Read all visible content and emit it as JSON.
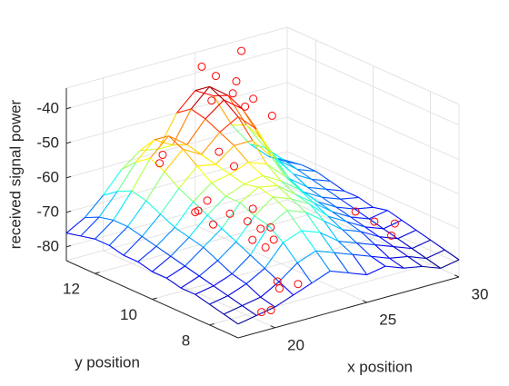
{
  "chart_data": {
    "type": "mesh3d",
    "xlabel": "x position",
    "ylabel": "y position",
    "zlabel": "received signal power",
    "xlim": [
      18,
      30
    ],
    "ylim": [
      7,
      13
    ],
    "zlim": [
      -84,
      -34
    ],
    "xticks": [
      20,
      25,
      30
    ],
    "yticks": [
      8,
      10,
      12
    ],
    "zticks": [
      -80,
      -70,
      -60,
      -50,
      -40
    ],
    "grid": true,
    "colormap": "jet",
    "x": [
      18,
      19,
      20,
      21,
      22,
      23,
      24,
      25,
      26,
      27,
      28,
      29,
      30
    ],
    "y": [
      7,
      7.5,
      8,
      8.5,
      9,
      9.5,
      10,
      10.5,
      11,
      11.5,
      12,
      12.5,
      13
    ],
    "z": [
      [
        -80,
        -79,
        -78,
        -76,
        -74,
        -72,
        -74,
        -76,
        -75,
        -77,
        -78,
        -80,
        -79
      ],
      [
        -79,
        -78,
        -77,
        -74,
        -70,
        -68,
        -70,
        -72,
        -74,
        -76,
        -77,
        -79,
        -78
      ],
      [
        -78,
        -77,
        -75,
        -72,
        -66,
        -64,
        -66,
        -70,
        -72,
        -74,
        -76,
        -78,
        -77
      ],
      [
        -77,
        -76,
        -74,
        -70,
        -63,
        -60,
        -62,
        -66,
        -70,
        -72,
        -75,
        -77,
        -76
      ],
      [
        -77,
        -75,
        -72,
        -68,
        -62,
        -58,
        -60,
        -63,
        -68,
        -71,
        -74,
        -76,
        -75
      ],
      [
        -76,
        -74,
        -70,
        -66,
        -60,
        -57,
        -58,
        -62,
        -66,
        -70,
        -73,
        -75,
        -74
      ],
      [
        -76,
        -73,
        -69,
        -64,
        -60,
        -58,
        -57,
        -60,
        -64,
        -69,
        -72,
        -74,
        -75
      ],
      [
        -75,
        -72,
        -68,
        -62,
        -58,
        -57,
        -55,
        -57,
        -62,
        -68,
        -71,
        -73,
        -74
      ],
      [
        -75,
        -71,
        -66,
        -60,
        -55,
        -56,
        -52,
        -52,
        -58,
        -66,
        -70,
        -72,
        -74
      ],
      [
        -74,
        -70,
        -64,
        -57,
        -52,
        -55,
        -50,
        -47,
        -52,
        -62,
        -68,
        -71,
        -73
      ],
      [
        -74,
        -70,
        -63,
        -55,
        -50,
        -54,
        -48,
        -44,
        -48,
        -58,
        -66,
        -70,
        -72
      ],
      [
        -75,
        -71,
        -65,
        -58,
        -53,
        -56,
        -47,
        -42,
        -46,
        -56,
        -64,
        -69,
        -72
      ],
      [
        -76,
        -73,
        -68,
        -62,
        -58,
        -59,
        -50,
        -45,
        -48,
        -58,
        -65,
        -70,
        -73
      ]
    ],
    "scatter": {
      "color": "#ff0000",
      "x": [
        20.5,
        20.8,
        21.0,
        21.3,
        21.6,
        22.2,
        22.4,
        22.6,
        22.8,
        23.0,
        23.2,
        23.5,
        22.0,
        21.8,
        20.2,
        20.4,
        25.5,
        25.8,
        26.0,
        26.3,
        26.6,
        27.0,
        27.2,
        25.2,
        24.8,
        27.8,
        28.2,
        28.5,
        29.0,
        22.5,
        23.8,
        24.0,
        20.9,
        21.2
      ],
      "y": [
        10.0,
        10.3,
        9.8,
        10.2,
        9.6,
        9.2,
        9.5,
        9.0,
        9.3,
        9.7,
        9.1,
        9.4,
        8.2,
        8.0,
        7.6,
        7.4,
        12.6,
        12.2,
        11.9,
        12.4,
        12.0,
        11.6,
        12.8,
        12.9,
        12.3,
        9.2,
        8.8,
        8.4,
        8.6,
        7.8,
        11.4,
        11.0,
        11.5,
        11.8
      ],
      "z": [
        -62,
        -64,
        -66,
        -61,
        -63,
        -70,
        -66,
        -72,
        -68,
        -64,
        -71,
        -69,
        -78,
        -79,
        -82,
        -81,
        -40,
        -44,
        -47,
        -42,
        -46,
        -50,
        -36,
        -38,
        -45,
        -70,
        -72,
        -75,
        -73,
        -78,
        -55,
        -58,
        -52,
        -56
      ]
    }
  }
}
